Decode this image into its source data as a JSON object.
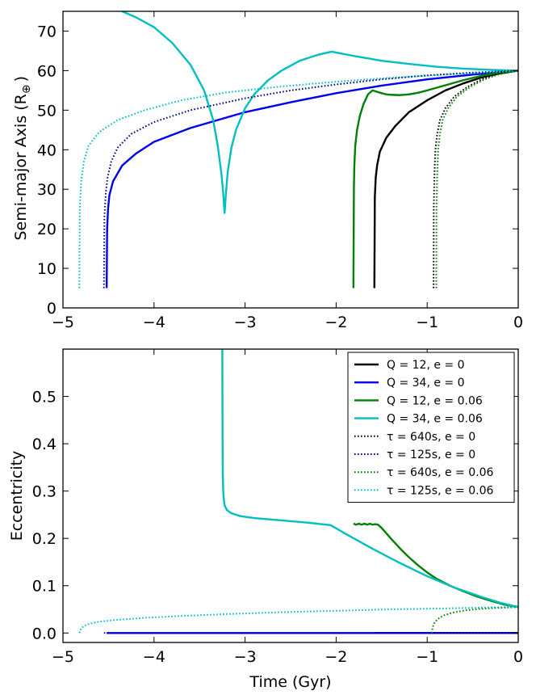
{
  "chart_data": [
    {
      "type": "line",
      "ylabel": "Semi-major Axis (R",
      "ylabel_subscript": "⊕",
      "ylabel_close": ")",
      "xlim": [
        -5,
        0
      ],
      "ylim": [
        0,
        75
      ],
      "xticks": [
        -5,
        -4,
        -3,
        -2,
        -1,
        0
      ],
      "xtick_labels": [
        "−5",
        "−4",
        "−3",
        "−2",
        "−1",
        "0"
      ],
      "yticks": [
        0,
        10,
        20,
        30,
        40,
        50,
        60,
        70
      ],
      "ytick_labels": [
        "0",
        "10",
        "20",
        "30",
        "40",
        "50",
        "60",
        "70"
      ],
      "series": [
        {
          "name": "Q = 12, e = 0",
          "color": "#000000",
          "style": "solid",
          "x": [
            -1.58,
            -1.575,
            -1.565,
            -1.55,
            -1.52,
            -1.45,
            -1.35,
            -1.2,
            -1.0,
            -0.8,
            -0.6,
            -0.4,
            -0.2,
            0
          ],
          "y": [
            5,
            28,
            33,
            36,
            39.5,
            43,
            46,
            49.5,
            52.5,
            55,
            56.8,
            58.3,
            59.3,
            60
          ]
        },
        {
          "name": "Q = 34, e = 0",
          "color": "#0000ee",
          "style": "solid",
          "x": [
            -4.52,
            -4.515,
            -4.505,
            -4.49,
            -4.45,
            -4.35,
            -4.2,
            -4.0,
            -3.6,
            -3.0,
            -2.5,
            -2.0,
            -1.5,
            -1.0,
            -0.5,
            0
          ],
          "y": [
            5,
            20,
            25,
            28.5,
            32,
            36,
            39,
            42,
            45.5,
            49.5,
            52,
            54.3,
            56.2,
            57.8,
            59,
            60
          ]
        },
        {
          "name": "Q = 12, e = 0.06",
          "color": "#008000",
          "style": "solid",
          "x": [
            -1.81,
            -1.805,
            -1.8,
            -1.79,
            -1.77,
            -1.74,
            -1.7,
            -1.65,
            -1.6,
            -1.5,
            -1.45,
            -1.4,
            -1.3,
            -1.2,
            -1.1,
            -1.0,
            -0.8,
            -0.6,
            -0.4,
            -0.2,
            0
          ],
          "y": [
            5,
            30,
            36,
            41,
            45,
            48.5,
            51.5,
            54,
            55,
            54.3,
            54,
            53.9,
            53.8,
            54,
            54.4,
            55,
            56.3,
            57.6,
            58.7,
            59.5,
            60
          ]
        },
        {
          "name": "Q = 34, e = 0.06",
          "color": "#00bfbf",
          "style": "solid",
          "x": [
            -4.35,
            -4.2,
            -4.0,
            -3.8,
            -3.6,
            -3.45,
            -3.35,
            -3.3,
            -3.26,
            -3.24,
            -3.225,
            -3.21,
            -3.19,
            -3.15,
            -3.1,
            -3.0,
            -2.9,
            -2.75,
            -2.6,
            -2.4,
            -2.2,
            -2.05,
            -1.8,
            -1.5,
            -1.2,
            -0.9,
            -0.6,
            -0.3,
            0
          ],
          "y": [
            75,
            73.5,
            71,
            67,
            61.5,
            55,
            47.5,
            41,
            34,
            29,
            24,
            29,
            34.5,
            40.5,
            45,
            50.5,
            54,
            57.5,
            60,
            62.5,
            64,
            64.8,
            63.7,
            62.5,
            61.7,
            61,
            60.5,
            60.2,
            60
          ]
        },
        {
          "name": "τ = 640s, e = 0",
          "color": "#000000",
          "style": "dotted",
          "x": [
            -0.93,
            -0.928,
            -0.92,
            -0.91,
            -0.89,
            -0.86,
            -0.8,
            -0.7,
            -0.55,
            -0.4,
            -0.25,
            -0.1,
            0
          ],
          "y": [
            5,
            25,
            34,
            40,
            44,
            47.5,
            50.5,
            53.5,
            56,
            57.8,
            59,
            59.7,
            60
          ]
        },
        {
          "name": "τ = 125s, e = 0",
          "color": "#00008b",
          "style": "dotted",
          "x": [
            -4.55,
            -4.545,
            -4.53,
            -4.51,
            -4.47,
            -4.4,
            -4.25,
            -4.0,
            -3.6,
            -3.0,
            -2.5,
            -2.0,
            -1.5,
            -1.0,
            -0.5,
            0
          ],
          "y": [
            5,
            23,
            29,
            33,
            37,
            40.5,
            44,
            47,
            50,
            53,
            55,
            56.5,
            57.8,
            58.8,
            59.5,
            60
          ]
        },
        {
          "name": "τ = 640s, e = 0.06",
          "color": "#008000",
          "style": "dotted",
          "x": [
            -0.9,
            -0.898,
            -0.89,
            -0.88,
            -0.86,
            -0.83,
            -0.77,
            -0.67,
            -0.52,
            -0.37,
            -0.22,
            -0.08,
            0
          ],
          "y": [
            5,
            25,
            34,
            40,
            44,
            47.5,
            50.5,
            53.5,
            56,
            57.8,
            59,
            59.7,
            60
          ]
        },
        {
          "name": "τ = 125s, e = 0.06",
          "color": "#00bfbf",
          "style": "dotted",
          "x": [
            -4.82,
            -4.815,
            -4.8,
            -4.77,
            -4.72,
            -4.6,
            -4.4,
            -4.1,
            -3.7,
            -3.2,
            -2.6,
            -2.0,
            -1.4,
            -0.8,
            -0.3,
            0
          ],
          "y": [
            5,
            25,
            32,
            37,
            41,
            44.5,
            47.5,
            50,
            52.5,
            54.5,
            56,
            57.2,
            58.2,
            59,
            59.6,
            60
          ]
        }
      ]
    },
    {
      "type": "line",
      "xlabel": "Time (Gyr)",
      "ylabel": "Eccentricity",
      "xlim": [
        -5,
        0
      ],
      "ylim": [
        -0.02,
        0.6
      ],
      "xticks": [
        -5,
        -4,
        -3,
        -2,
        -1,
        0
      ],
      "xtick_labels": [
        "−5",
        "−4",
        "−3",
        "−2",
        "−1",
        "0"
      ],
      "yticks": [
        0.0,
        0.1,
        0.2,
        0.3,
        0.4,
        0.5
      ],
      "ytick_labels": [
        "0.0",
        "0.1",
        "0.2",
        "0.3",
        "0.4",
        "0.5"
      ],
      "legend_position": "top-right",
      "series": [
        {
          "name": "Q = 12, e = 0",
          "color": "#000000",
          "style": "solid",
          "x": [
            -1.58,
            0
          ],
          "y": [
            0,
            0
          ]
        },
        {
          "name": "Q = 34, e = 0",
          "color": "#0000ee",
          "style": "solid",
          "x": [
            -4.52,
            0
          ],
          "y": [
            0,
            0
          ]
        },
        {
          "name": "Q = 12, e = 0.06",
          "color": "#008000",
          "style": "solid",
          "x": [
            -1.81,
            -1.78,
            -1.75,
            -1.72,
            -1.69,
            -1.66,
            -1.63,
            -1.6,
            -1.57,
            -1.54,
            -1.5,
            -1.4,
            -1.3,
            -1.2,
            -1.1,
            -1.0,
            -0.9,
            -0.75,
            -0.6,
            -0.45,
            -0.3,
            -0.15,
            0
          ],
          "y": [
            0.231,
            0.229,
            0.231,
            0.229,
            0.231,
            0.229,
            0.231,
            0.229,
            0.23,
            0.229,
            0.222,
            0.2,
            0.179,
            0.16,
            0.143,
            0.128,
            0.115,
            0.1,
            0.088,
            0.077,
            0.068,
            0.06,
            0.055
          ]
        },
        {
          "name": "Q = 34, e = 0.06",
          "color": "#00bfbf",
          "style": "solid",
          "x": [
            -3.25,
            -3.248,
            -3.245,
            -3.24,
            -3.235,
            -3.225,
            -3.2,
            -3.15,
            -3.05,
            -2.9,
            -2.6,
            -2.3,
            -2.06,
            -1.9,
            -1.6,
            -1.3,
            -1.0,
            -0.7,
            -0.4,
            -0.2,
            0
          ],
          "y": [
            0.6,
            0.45,
            0.34,
            0.3,
            0.285,
            0.27,
            0.26,
            0.253,
            0.247,
            0.243,
            0.238,
            0.233,
            0.228,
            0.21,
            0.178,
            0.148,
            0.12,
            0.096,
            0.076,
            0.064,
            0.055
          ]
        },
        {
          "name": "τ = 640s, e = 0",
          "color": "#000000",
          "style": "dotted",
          "x": [
            -0.93,
            0
          ],
          "y": [
            0,
            0
          ]
        },
        {
          "name": "τ = 125s, e = 0",
          "color": "#00008b",
          "style": "dotted",
          "x": [
            -4.55,
            0
          ],
          "y": [
            0,
            0
          ]
        },
        {
          "name": "τ = 640s, e = 0.06",
          "color": "#008000",
          "style": "dotted",
          "x": [
            -0.95,
            -0.94,
            -0.92,
            -0.88,
            -0.82,
            -0.72,
            -0.58,
            -0.42,
            -0.25,
            -0.1,
            0
          ],
          "y": [
            0,
            0.012,
            0.022,
            0.03,
            0.037,
            0.043,
            0.048,
            0.051,
            0.053,
            0.054,
            0.055
          ]
        },
        {
          "name": "τ = 125s, e = 0.06",
          "color": "#00bfbf",
          "style": "dotted",
          "x": [
            -4.82,
            -4.8,
            -4.76,
            -4.7,
            -4.6,
            -4.4,
            -4.1,
            -3.7,
            -3.2,
            -2.6,
            -2.0,
            -1.4,
            -0.8,
            -0.3,
            0
          ],
          "y": [
            0,
            0.01,
            0.016,
            0.02,
            0.024,
            0.028,
            0.032,
            0.036,
            0.04,
            0.044,
            0.047,
            0.05,
            0.052,
            0.054,
            0.055
          ]
        }
      ]
    }
  ]
}
